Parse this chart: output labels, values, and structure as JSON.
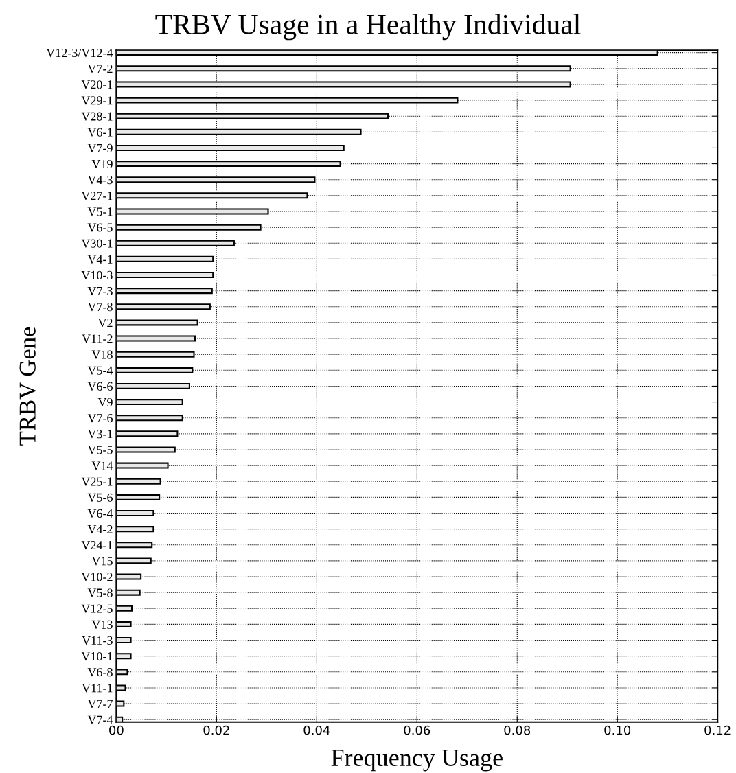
{
  "chart_data": {
    "type": "bar",
    "orientation": "horizontal",
    "title": "TRBV Usage in a Healthy Individual",
    "xlabel": "Frequency Usage",
    "ylabel": "TRBV Gene",
    "categories": [
      "V12-3/V12-4",
      "V7-2",
      "V20-1",
      "V29-1",
      "V28-1",
      "V6-1",
      "V7-9",
      "V19",
      "V4-3",
      "V27-1",
      "V5-1",
      "V6-5",
      "V30-1",
      "V4-1",
      "V10-3",
      "V7-3",
      "V7-8",
      "V2",
      "V11-2",
      "V18",
      "V5-4",
      "V6-6",
      "V9",
      "V7-6",
      "V3-1",
      "V5-5",
      "V14",
      "V25-1",
      "V5-6",
      "V6-4",
      "V4-2",
      "V24-1",
      "V15",
      "V10-2",
      "V5-8",
      "V12-5",
      "V13",
      "V11-3",
      "V10-1",
      "V6-8",
      "V11-1",
      "V7-7",
      "V7-4"
    ],
    "values": [
      0.108,
      0.0906,
      0.0906,
      0.0681,
      0.0542,
      0.0488,
      0.0454,
      0.0447,
      0.0396,
      0.0381,
      0.0303,
      0.0288,
      0.0235,
      0.0193,
      0.0193,
      0.0191,
      0.0187,
      0.0162,
      0.0157,
      0.0155,
      0.0152,
      0.0146,
      0.0132,
      0.0132,
      0.0122,
      0.0117,
      0.0103,
      0.0088,
      0.0086,
      0.0074,
      0.0074,
      0.0071,
      0.0069,
      0.0049,
      0.0047,
      0.0031,
      0.0029,
      0.0029,
      0.0029,
      0.0022,
      0.0018,
      0.0015,
      0.0012
    ],
    "color": "#e8e8e8",
    "xlim": [
      0,
      0.12
    ],
    "xticks": [
      {
        "value": 0,
        "label": "00"
      },
      0.02,
      0.04,
      0.06,
      {
        "value": 0.08,
        "label": "0.08"
      },
      {
        "value": 0.1,
        "label": "0.10"
      },
      {
        "value": 0.12,
        "label": "0.12"
      }
    ],
    "grid": true,
    "line_style": "dotted"
  }
}
